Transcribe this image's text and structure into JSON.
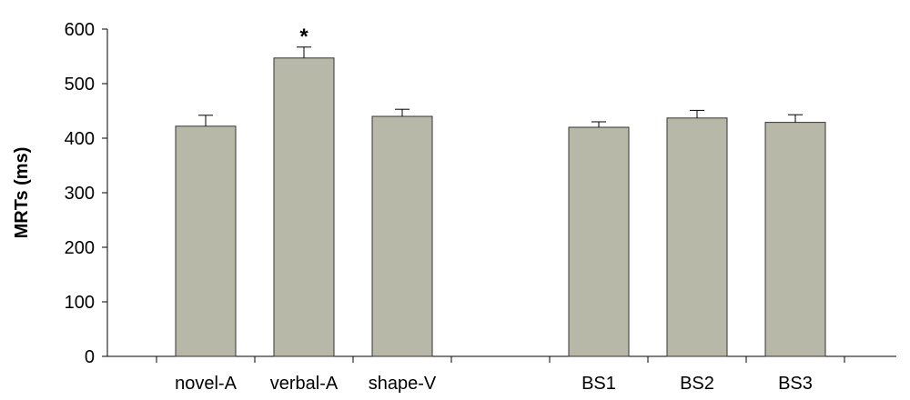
{
  "chart_data": {
    "type": "bar",
    "title": "",
    "xlabel": "",
    "ylabel": "MRTs (ms)",
    "ylim": [
      0,
      600
    ],
    "yticks": [
      0,
      100,
      200,
      300,
      400,
      500,
      600
    ],
    "grid": false,
    "legend": "none",
    "bar_color": "#b8b8a9",
    "bar_edge_color": "#333333",
    "categories": [
      "novel-A",
      "verbal-A",
      "shape-V",
      "BS1",
      "BS2",
      "BS3"
    ],
    "groups": [
      [
        "novel-A",
        "verbal-A",
        "shape-V"
      ],
      [
        "BS1",
        "BS2",
        "BS3"
      ]
    ],
    "values": [
      422,
      547,
      440,
      420,
      437,
      429
    ],
    "errors": [
      20,
      20,
      13,
      10,
      14,
      14
    ],
    "annotations": [
      {
        "category": "verbal-A",
        "text": "*"
      }
    ]
  }
}
